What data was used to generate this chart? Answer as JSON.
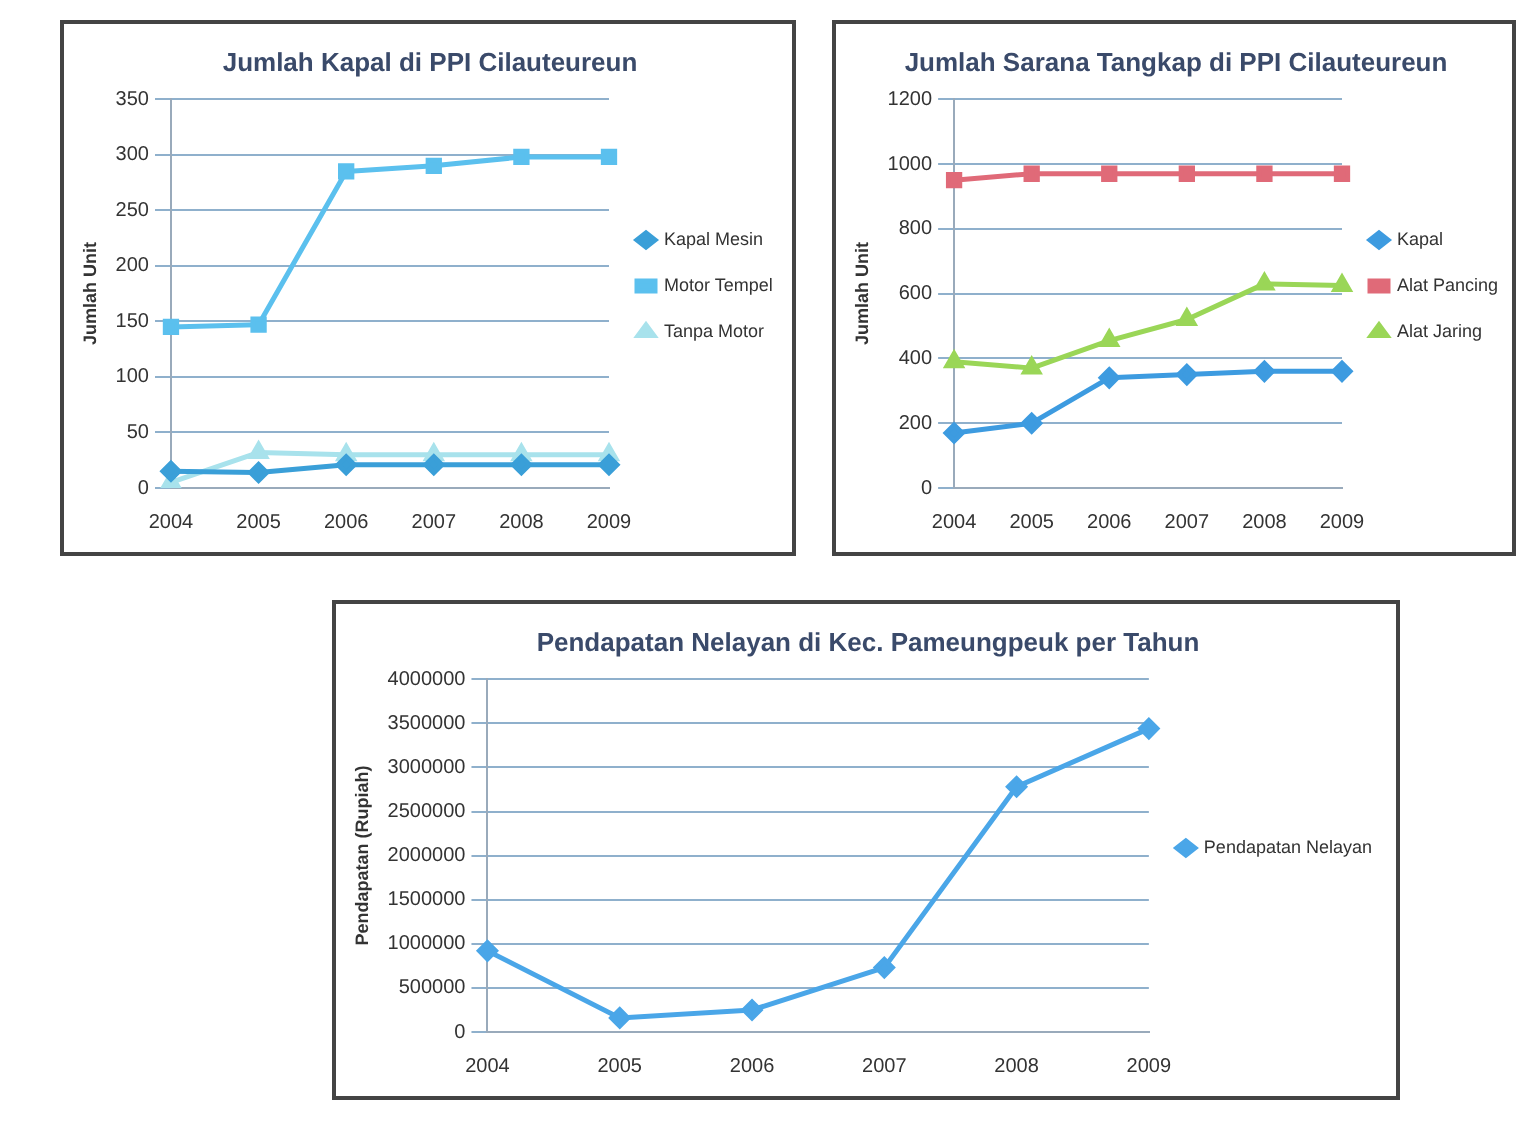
{
  "chart_data": [
    {
      "type": "line",
      "title": "Jumlah Kapal di PPI Cilauteureun",
      "ylabel": "Jumlah Unit",
      "categories": [
        "2004",
        "2005",
        "2006",
        "2007",
        "2008",
        "2009"
      ],
      "series": [
        {
          "name": "Kapal Mesin",
          "color": "#3a9fd8",
          "marker": "diamond",
          "values": [
            15,
            14,
            21,
            21,
            21,
            21
          ]
        },
        {
          "name": "Motor Tempel",
          "color": "#5bc0ee",
          "marker": "square",
          "values": [
            145,
            147,
            285,
            290,
            298,
            298
          ]
        },
        {
          "name": "Tanpa Motor",
          "color": "#a8e2ec",
          "marker": "triangle",
          "values": [
            5,
            32,
            30,
            30,
            30,
            30
          ]
        }
      ],
      "ylim": [
        0,
        350
      ],
      "yticks": [
        0,
        50,
        100,
        150,
        200,
        250,
        300,
        350
      ],
      "grid": "y",
      "legend": "right",
      "line_style": "solid"
    },
    {
      "type": "line",
      "title": "Jumlah Sarana Tangkap di PPI Cilauteureun",
      "ylabel": "Jumlah Unit",
      "categories": [
        "2004",
        "2005",
        "2006",
        "2007",
        "2008",
        "2009"
      ],
      "series": [
        {
          "name": "Kapal",
          "color": "#3d9be0",
          "marker": "diamond",
          "values": [
            170,
            200,
            340,
            350,
            360,
            360
          ]
        },
        {
          "name": "Alat Pancing",
          "color": "#e06a78",
          "marker": "square",
          "values": [
            950,
            970,
            970,
            970,
            970,
            970
          ]
        },
        {
          "name": "Alat Jaring",
          "color": "#9ad657",
          "marker": "triangle",
          "values": [
            390,
            370,
            455,
            520,
            630,
            625
          ]
        }
      ],
      "ylim": [
        0,
        1200
      ],
      "yticks": [
        0,
        200,
        400,
        600,
        800,
        1000,
        1200
      ],
      "grid": "y",
      "legend": "right",
      "line_style": "solid"
    },
    {
      "type": "line",
      "title": "Pendapatan Nelayan di Kec. Pameungpeuk per Tahun",
      "ylabel": "Pendapatan (Rupiah)",
      "categories": [
        "2004",
        "2005",
        "2006",
        "2007",
        "2008",
        "2009"
      ],
      "series": [
        {
          "name": "Pendapatan Nelayan",
          "color": "#4aa6e8",
          "marker": "diamond",
          "values": [
            920000,
            160000,
            250000,
            730000,
            2780000,
            3440000
          ]
        }
      ],
      "ylim": [
        0,
        4000000
      ],
      "yticks": [
        0,
        500000,
        1000000,
        1500000,
        2000000,
        2500000,
        3000000,
        3500000,
        4000000
      ],
      "grid": "y",
      "legend": "right",
      "line_style": "solid"
    }
  ]
}
